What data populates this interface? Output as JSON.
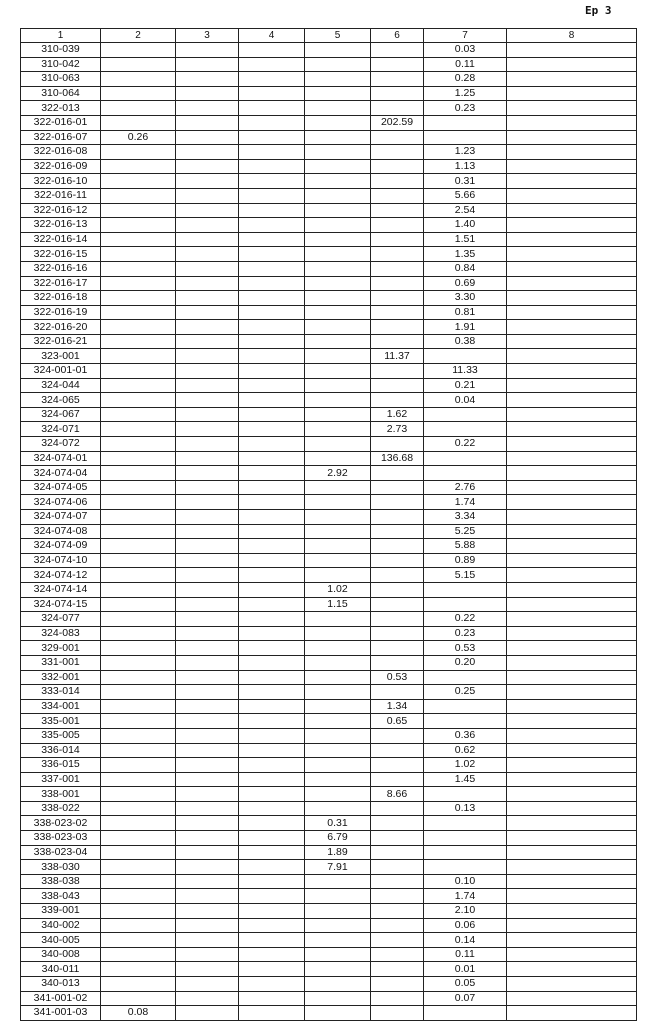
{
  "page_label": "Ep 3",
  "headers": [
    "1",
    "2",
    "3",
    "4",
    "5",
    "6",
    "7",
    "8"
  ],
  "rows": [
    [
      "310-039",
      "",
      "",
      "",
      "",
      "",
      "0.03",
      ""
    ],
    [
      "310-042",
      "",
      "",
      "",
      "",
      "",
      "0.11",
      ""
    ],
    [
      "310-063",
      "",
      "",
      "",
      "",
      "",
      "0.28",
      ""
    ],
    [
      "310-064",
      "",
      "",
      "",
      "",
      "",
      "1.25",
      ""
    ],
    [
      "322-013",
      "",
      "",
      "",
      "",
      "",
      "0.23",
      ""
    ],
    [
      "322-016-01",
      "",
      "",
      "",
      "",
      "202.59",
      "",
      ""
    ],
    [
      "322-016-07",
      "0.26",
      "",
      "",
      "",
      "",
      "",
      ""
    ],
    [
      "322-016-08",
      "",
      "",
      "",
      "",
      "",
      "1.23",
      ""
    ],
    [
      "322-016-09",
      "",
      "",
      "",
      "",
      "",
      "1.13",
      ""
    ],
    [
      "322-016-10",
      "",
      "",
      "",
      "",
      "",
      "0.31",
      ""
    ],
    [
      "322-016-11",
      "",
      "",
      "",
      "",
      "",
      "5.66",
      ""
    ],
    [
      "322-016-12",
      "",
      "",
      "",
      "",
      "",
      "2.54",
      ""
    ],
    [
      "322-016-13",
      "",
      "",
      "",
      "",
      "",
      "1.40",
      ""
    ],
    [
      "322-016-14",
      "",
      "",
      "",
      "",
      "",
      "1.51",
      ""
    ],
    [
      "322-016-15",
      "",
      "",
      "",
      "",
      "",
      "1.35",
      ""
    ],
    [
      "322-016-16",
      "",
      "",
      "",
      "",
      "",
      "0.84",
      ""
    ],
    [
      "322-016-17",
      "",
      "",
      "",
      "",
      "",
      "0.69",
      ""
    ],
    [
      "322-016-18",
      "",
      "",
      "",
      "",
      "",
      "3.30",
      ""
    ],
    [
      "322-016-19",
      "",
      "",
      "",
      "",
      "",
      "0.81",
      ""
    ],
    [
      "322-016-20",
      "",
      "",
      "",
      "",
      "",
      "1.91",
      ""
    ],
    [
      "322-016-21",
      "",
      "",
      "",
      "",
      "",
      "0.38",
      ""
    ],
    [
      "323-001",
      "",
      "",
      "",
      "",
      "11.37",
      "",
      ""
    ],
    [
      "324-001-01",
      "",
      "",
      "",
      "",
      "",
      "11.33",
      ""
    ],
    [
      "324-044",
      "",
      "",
      "",
      "",
      "",
      "0.21",
      ""
    ],
    [
      "324-065",
      "",
      "",
      "",
      "",
      "",
      "0.04",
      ""
    ],
    [
      "324-067",
      "",
      "",
      "",
      "",
      "1.62",
      "",
      ""
    ],
    [
      "324-071",
      "",
      "",
      "",
      "",
      "2.73",
      "",
      ""
    ],
    [
      "324-072",
      "",
      "",
      "",
      "",
      "",
      "0.22",
      ""
    ],
    [
      "324-074-01",
      "",
      "",
      "",
      "",
      "136.68",
      "",
      ""
    ],
    [
      "324-074-04",
      "",
      "",
      "",
      "2.92",
      "",
      "",
      ""
    ],
    [
      "324-074-05",
      "",
      "",
      "",
      "",
      "",
      "2.76",
      ""
    ],
    [
      "324-074-06",
      "",
      "",
      "",
      "",
      "",
      "1.74",
      ""
    ],
    [
      "324-074-07",
      "",
      "",
      "",
      "",
      "",
      "3.34",
      ""
    ],
    [
      "324-074-08",
      "",
      "",
      "",
      "",
      "",
      "5.25",
      ""
    ],
    [
      "324-074-09",
      "",
      "",
      "",
      "",
      "",
      "5.88",
      ""
    ],
    [
      "324-074-10",
      "",
      "",
      "",
      "",
      "",
      "0.89",
      ""
    ],
    [
      "324-074-12",
      "",
      "",
      "",
      "",
      "",
      "5.15",
      ""
    ],
    [
      "324-074-14",
      "",
      "",
      "",
      "1.02",
      "",
      "",
      ""
    ],
    [
      "324-074-15",
      "",
      "",
      "",
      "1.15",
      "",
      "",
      ""
    ],
    [
      "324-077",
      "",
      "",
      "",
      "",
      "",
      "0.22",
      ""
    ],
    [
      "324-083",
      "",
      "",
      "",
      "",
      "",
      "0.23",
      ""
    ],
    [
      "329-001",
      "",
      "",
      "",
      "",
      "",
      "0.53",
      ""
    ],
    [
      "331-001",
      "",
      "",
      "",
      "",
      "",
      "0.20",
      ""
    ],
    [
      "332-001",
      "",
      "",
      "",
      "",
      "0.53",
      "",
      ""
    ],
    [
      "333-014",
      "",
      "",
      "",
      "",
      "",
      "0.25",
      ""
    ],
    [
      "334-001",
      "",
      "",
      "",
      "",
      "1.34",
      "",
      ""
    ],
    [
      "335-001",
      "",
      "",
      "",
      "",
      "0.65",
      "",
      ""
    ],
    [
      "335-005",
      "",
      "",
      "",
      "",
      "",
      "0.36",
      ""
    ],
    [
      "336-014",
      "",
      "",
      "",
      "",
      "",
      "0.62",
      ""
    ],
    [
      "336-015",
      "",
      "",
      "",
      "",
      "",
      "1.02",
      ""
    ],
    [
      "337-001",
      "",
      "",
      "",
      "",
      "",
      "1.45",
      ""
    ],
    [
      "338-001",
      "",
      "",
      "",
      "",
      "8.66",
      "",
      ""
    ],
    [
      "338-022",
      "",
      "",
      "",
      "",
      "",
      "0.13",
      ""
    ],
    [
      "338-023-02",
      "",
      "",
      "",
      "0.31",
      "",
      "",
      ""
    ],
    [
      "338-023-03",
      "",
      "",
      "",
      "6.79",
      "",
      "",
      ""
    ],
    [
      "338-023-04",
      "",
      "",
      "",
      "1.89",
      "",
      "",
      ""
    ],
    [
      "338-030",
      "",
      "",
      "",
      "7.91",
      "",
      "",
      ""
    ],
    [
      "338-038",
      "",
      "",
      "",
      "",
      "",
      "0.10",
      ""
    ],
    [
      "338-043",
      "",
      "",
      "",
      "",
      "",
      "1.74",
      ""
    ],
    [
      "339-001",
      "",
      "",
      "",
      "",
      "",
      "2.10",
      ""
    ],
    [
      "340-002",
      "",
      "",
      "",
      "",
      "",
      "0.06",
      ""
    ],
    [
      "340-005",
      "",
      "",
      "",
      "",
      "",
      "0.14",
      ""
    ],
    [
      "340-008",
      "",
      "",
      "",
      "",
      "",
      "0.11",
      ""
    ],
    [
      "340-011",
      "",
      "",
      "",
      "",
      "",
      "0.01",
      ""
    ],
    [
      "340-013",
      "",
      "",
      "",
      "",
      "",
      "0.05",
      ""
    ],
    [
      "341-001-02",
      "",
      "",
      "",
      "",
      "",
      "0.07",
      ""
    ],
    [
      "341-001-03",
      "0.08",
      "",
      "",
      "",
      "",
      "",
      ""
    ]
  ]
}
